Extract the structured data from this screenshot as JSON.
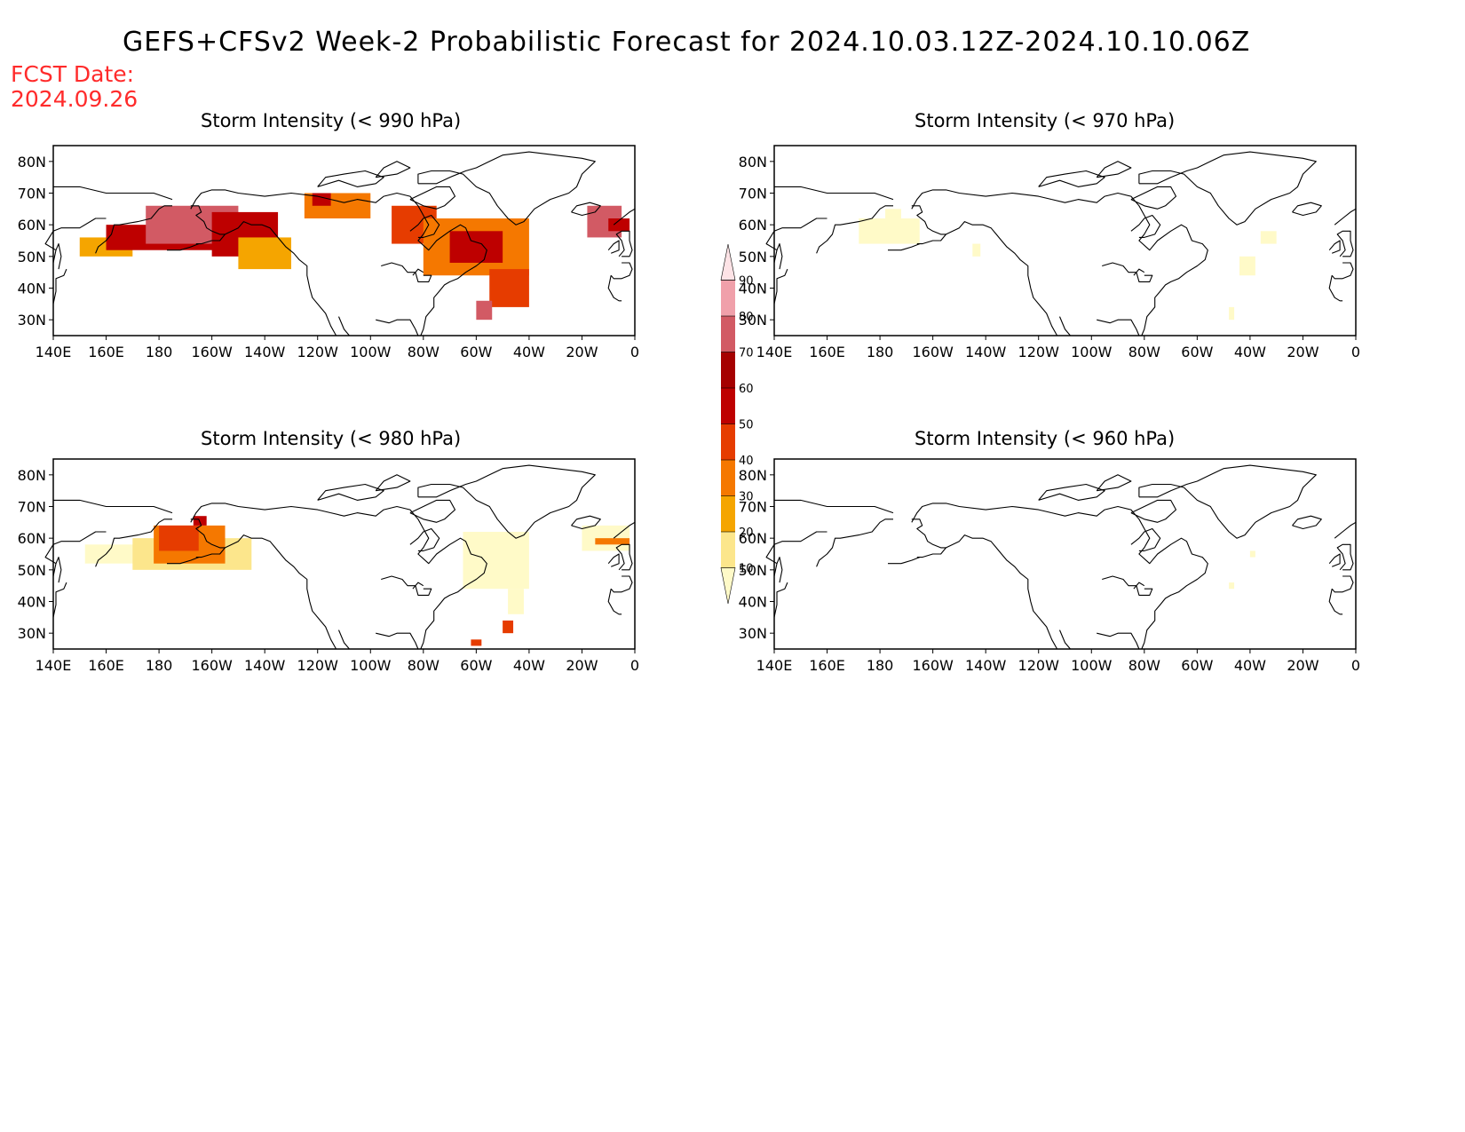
{
  "title": "GEFS+CFSv2 Week-2 Probabilistic Forecast for 2024.10.03.12Z-2024.10.10.06Z",
  "fcst_label": "FCST Date:",
  "fcst_date": "2024.09.26",
  "lat_ticks": [
    "80N",
    "70N",
    "60N",
    "50N",
    "40N",
    "30N"
  ],
  "lon_ticks": [
    "140E",
    "160E",
    "180",
    "160W",
    "140W",
    "120W",
    "100W",
    "80W",
    "60W",
    "40W",
    "20W",
    "0"
  ],
  "colorbar": {
    "levels": [
      "10",
      "20",
      "30",
      "40",
      "50",
      "60",
      "70",
      "80",
      "90"
    ],
    "colors": [
      "#fffac8",
      "#fce68c",
      "#f5a500",
      "#f57800",
      "#e63c00",
      "#be0000",
      "#a50000",
      "#d25a64",
      "#f0a0aa",
      "#fde3e6"
    ]
  },
  "panels": [
    {
      "id": "p990",
      "title": "Storm Intensity (< 990 hPa)",
      "regions": [
        {
          "lon": [
            150,
            170
          ],
          "lat": [
            50,
            56
          ],
          "level": 2
        },
        {
          "lon": [
            160,
            205
          ],
          "lat": [
            52,
            60
          ],
          "level": 5
        },
        {
          "lon": [
            175,
            210
          ],
          "lat": [
            54,
            66
          ],
          "level": 7
        },
        {
          "lon": [
            200,
            225
          ],
          "lat": [
            50,
            64
          ],
          "level": 5
        },
        {
          "lon": [
            210,
            230
          ],
          "lat": [
            46,
            56
          ],
          "level": 2
        },
        {
          "lon": [
            235,
            260
          ],
          "lat": [
            62,
            70
          ],
          "level": 3
        },
        {
          "lon": [
            238,
            245
          ],
          "lat": [
            66,
            70
          ],
          "level": 5
        },
        {
          "lon": [
            268,
            285
          ],
          "lat": [
            54,
            66
          ],
          "level": 4
        },
        {
          "lon": [
            280,
            320
          ],
          "lat": [
            44,
            62
          ],
          "level": 3
        },
        {
          "lon": [
            290,
            310
          ],
          "lat": [
            48,
            58
          ],
          "level": 5
        },
        {
          "lon": [
            305,
            320
          ],
          "lat": [
            34,
            46
          ],
          "level": 4
        },
        {
          "lon": [
            300,
            306
          ],
          "lat": [
            30,
            36
          ],
          "level": 7
        },
        {
          "lon": [
            342,
            355
          ],
          "lat": [
            56,
            66
          ],
          "level": 7
        },
        {
          "lon": [
            350,
            358
          ],
          "lat": [
            58,
            62
          ],
          "level": 5
        }
      ]
    },
    {
      "id": "p970",
      "title": "Storm Intensity (< 970 hPa)",
      "regions": [
        {
          "lon": [
            172,
            195
          ],
          "lat": [
            54,
            62
          ],
          "level": 0
        },
        {
          "lon": [
            182,
            188
          ],
          "lat": [
            62,
            65
          ],
          "level": 0
        },
        {
          "lon": [
            215,
            218
          ],
          "lat": [
            50,
            54
          ],
          "level": 0
        },
        {
          "lon": [
            324,
            330
          ],
          "lat": [
            54,
            58
          ],
          "level": 0
        },
        {
          "lon": [
            316,
            322
          ],
          "lat": [
            44,
            50
          ],
          "level": 0
        },
        {
          "lon": [
            312,
            314
          ],
          "lat": [
            30,
            34
          ],
          "level": 0
        }
      ]
    },
    {
      "id": "p980",
      "title": "Storm Intensity (< 980 hPa)",
      "regions": [
        {
          "lon": [
            152,
            172
          ],
          "lat": [
            52,
            58
          ],
          "level": 0
        },
        {
          "lon": [
            170,
            215
          ],
          "lat": [
            50,
            60
          ],
          "level": 1
        },
        {
          "lon": [
            178,
            205
          ],
          "lat": [
            52,
            64
          ],
          "level": 3
        },
        {
          "lon": [
            180,
            195
          ],
          "lat": [
            56,
            64
          ],
          "level": 4
        },
        {
          "lon": [
            193,
            198
          ],
          "lat": [
            64,
            67
          ],
          "level": 5
        },
        {
          "lon": [
            295,
            320
          ],
          "lat": [
            44,
            62
          ],
          "level": 0
        },
        {
          "lon": [
            312,
            318
          ],
          "lat": [
            36,
            44
          ],
          "level": 0
        },
        {
          "lon": [
            340,
            358
          ],
          "lat": [
            56,
            64
          ],
          "level": 0
        },
        {
          "lon": [
            345,
            358
          ],
          "lat": [
            58,
            60
          ],
          "level": 3
        },
        {
          "lon": [
            298,
            302
          ],
          "lat": [
            26,
            28
          ],
          "level": 4
        },
        {
          "lon": [
            310,
            314
          ],
          "lat": [
            30,
            34
          ],
          "level": 4
        }
      ]
    },
    {
      "id": "p960",
      "title": "Storm Intensity (< 960 hPa)",
      "regions": [
        {
          "lon": [
            312,
            314
          ],
          "lat": [
            44,
            46
          ],
          "level": 0
        },
        {
          "lon": [
            320,
            322
          ],
          "lat": [
            54,
            56
          ],
          "level": 0
        }
      ]
    }
  ]
}
